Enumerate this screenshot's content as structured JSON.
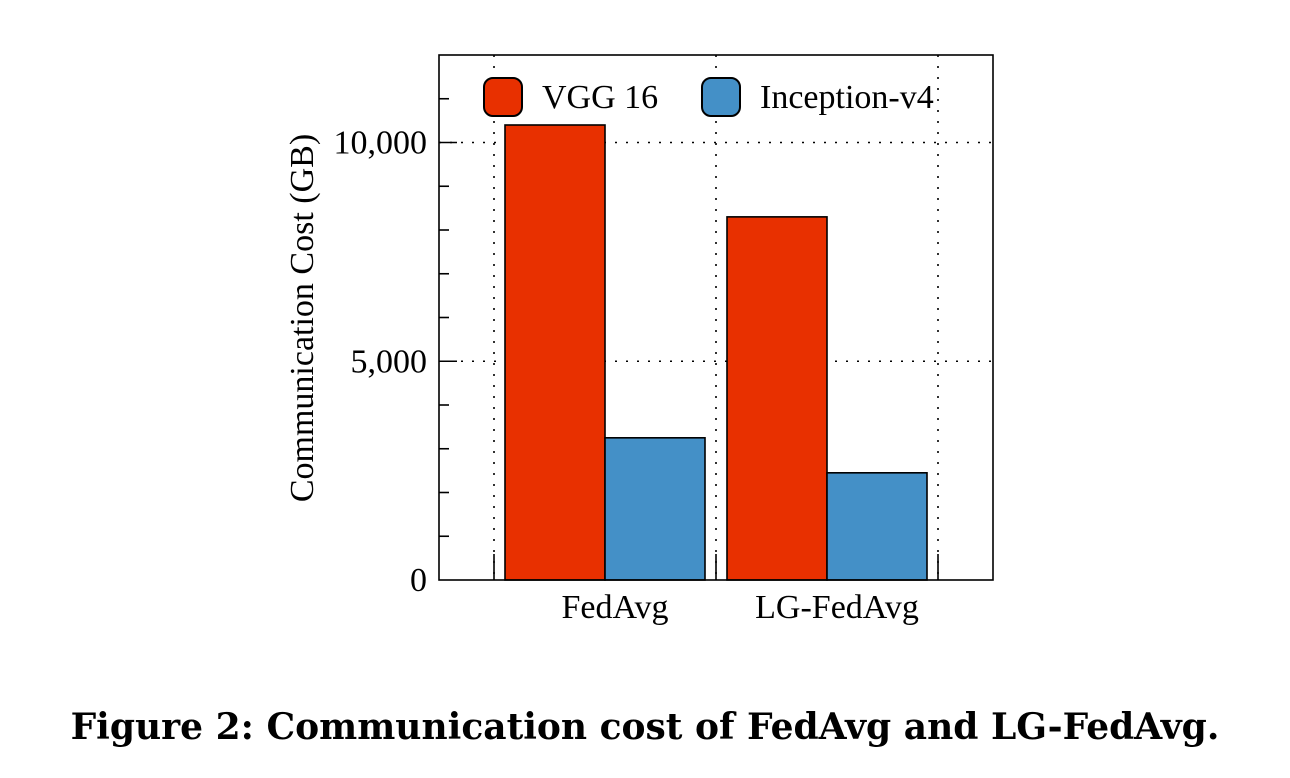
{
  "caption": "Figure 2: Communication cost of FedAvg and LG-FedAvg.",
  "chart_data": {
    "type": "bar",
    "categories": [
      "FedAvg",
      "LG-FedAvg"
    ],
    "series": [
      {
        "name": "VGG 16",
        "values": [
          10400,
          8300
        ],
        "color": "#e83000"
      },
      {
        "name": "Inception-v4",
        "values": [
          3250,
          2450
        ],
        "color": "#4490c7"
      }
    ],
    "xlabel": "",
    "ylabel": "Communication Cost (GB)",
    "ylim": [
      0,
      12000
    ],
    "yticks": [
      0,
      5000,
      10000
    ],
    "ytick_labels": [
      "0",
      "5,000",
      "10,000"
    ],
    "grid": "dotted",
    "legend": "top"
  }
}
